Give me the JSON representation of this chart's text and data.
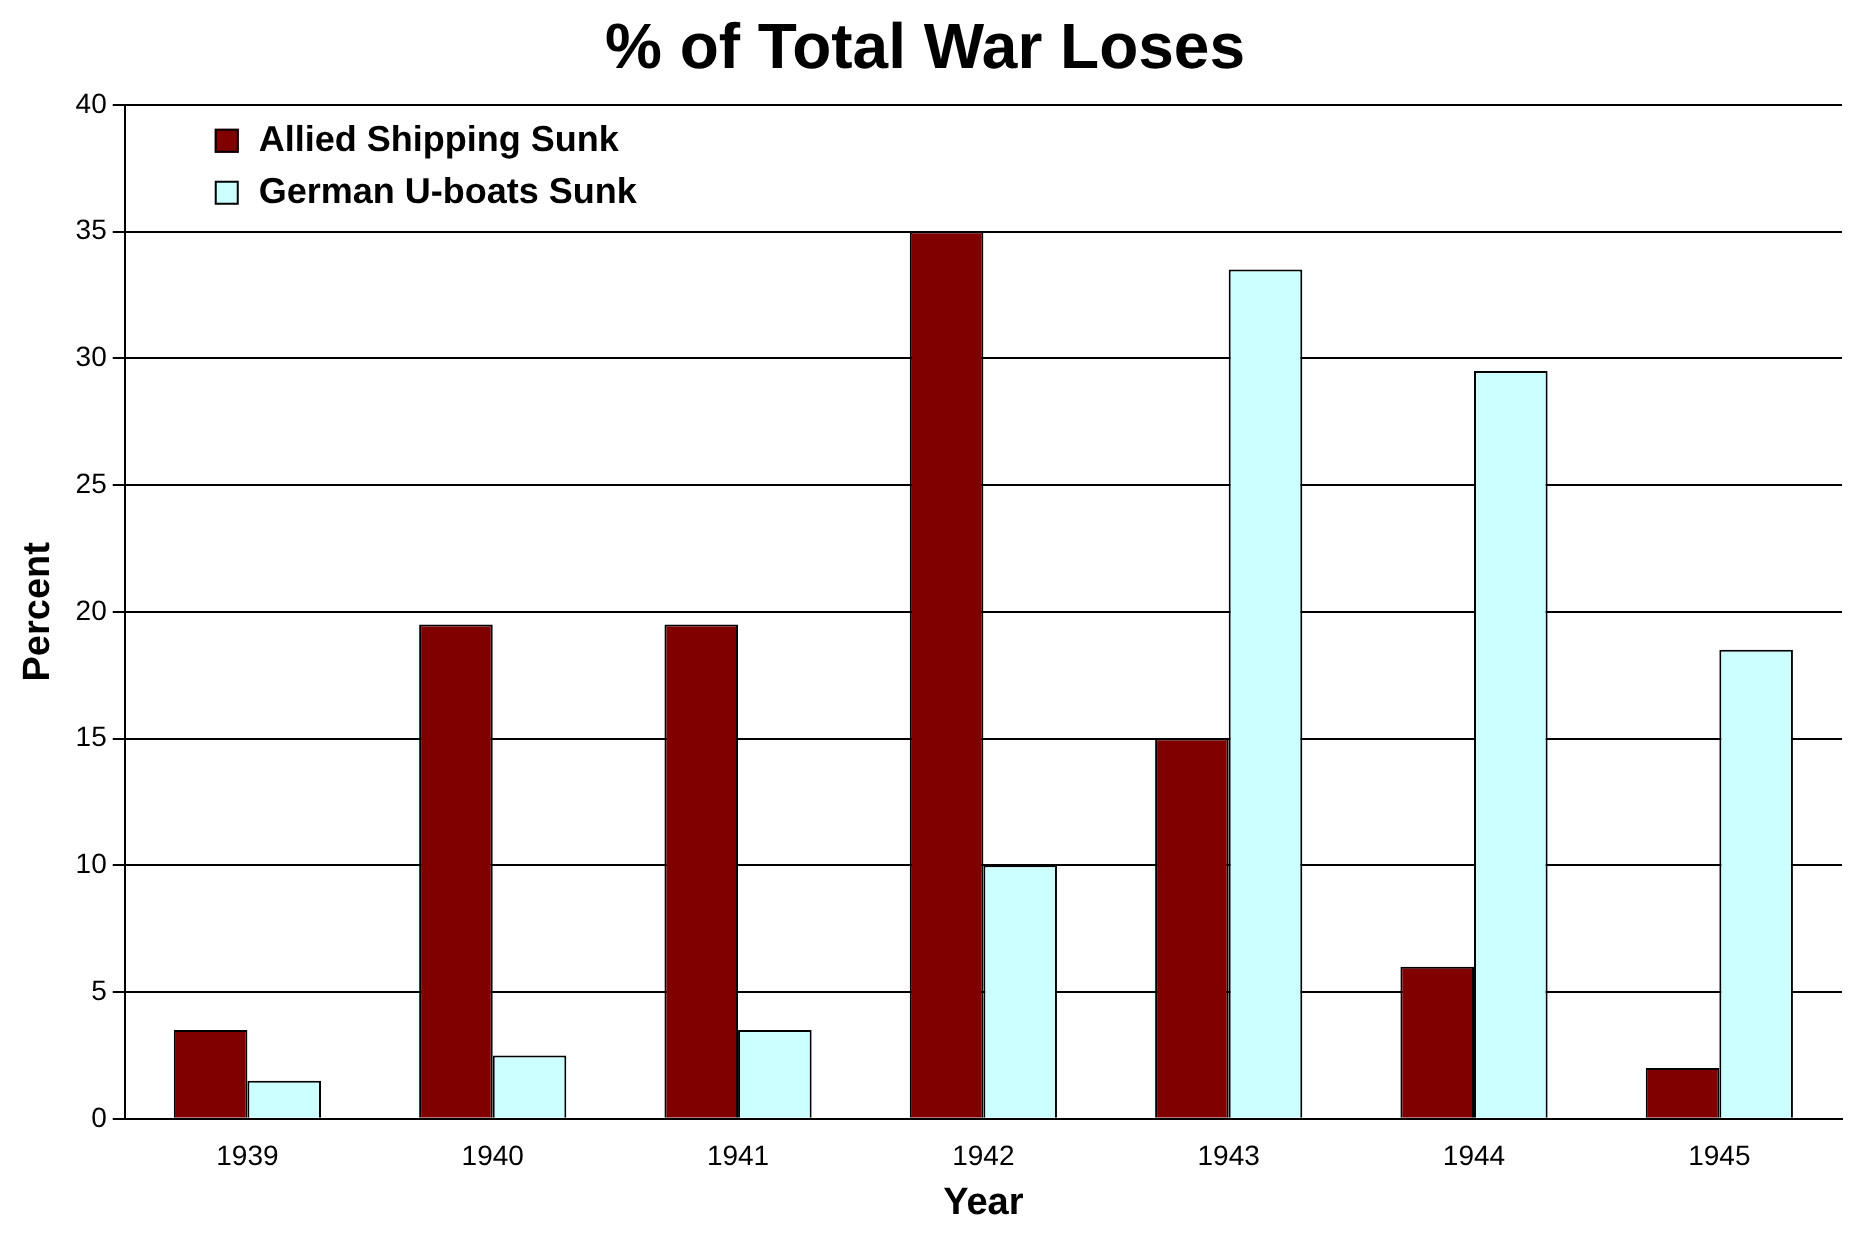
{
  "chart_data": {
    "type": "bar",
    "title": "% of Total War Loses",
    "xlabel": "Year",
    "ylabel": "Percent",
    "categories": [
      "1939",
      "1940",
      "1941",
      "1942",
      "1943",
      "1944",
      "1945"
    ],
    "series": [
      {
        "name": "Allied Shipping Sunk",
        "color": "#800000",
        "values": [
          3.5,
          19.5,
          19.5,
          35,
          15,
          6,
          2
        ]
      },
      {
        "name": "German U-boats Sunk",
        "color": "#ccffff",
        "values": [
          1.5,
          2.5,
          3.5,
          10,
          33.5,
          29.5,
          18.5
        ]
      }
    ],
    "ylim": [
      0,
      40
    ],
    "yticks": [
      0,
      5,
      10,
      15,
      20,
      25,
      30,
      35,
      40
    ],
    "grid": "y",
    "legend": "top left"
  }
}
